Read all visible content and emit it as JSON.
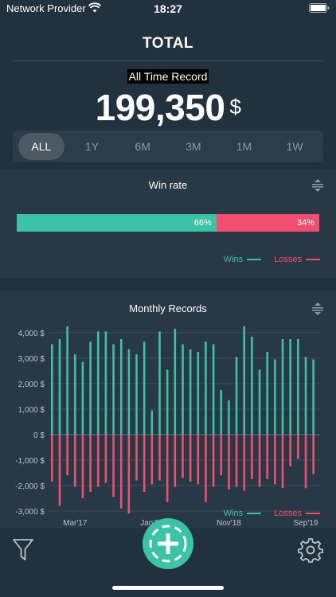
{
  "status": {
    "provider": "Network Provider",
    "time": "18:27"
  },
  "header": {
    "title": "TOTAL",
    "record_label": "All Time Record",
    "total": "199,350",
    "currency": "$"
  },
  "range_tabs": [
    "ALL",
    "1Y",
    "6M",
    "3M",
    "1M",
    "1W"
  ],
  "range_selected": "ALL",
  "winrate": {
    "title": "Win rate",
    "wins_pct": 66,
    "losses_pct": 34,
    "wins_label": "66%",
    "losses_label": "34%",
    "legend": {
      "wins": "Wins",
      "losses": "Losses"
    }
  },
  "monthly": {
    "title": "Monthly Records",
    "legend": {
      "wins": "Wins",
      "losses": "Losses"
    }
  },
  "colors": {
    "wins": "#3cc2a4",
    "losses": "#f14f6f",
    "background": "#22313e",
    "card": "#283845"
  },
  "icons": {
    "wifi": "wifi-icon",
    "battery": "battery-icon",
    "sort": "sort-icon",
    "filter": "filter-icon",
    "add": "plus-icon",
    "settings": "gear-icon"
  },
  "chart_data": {
    "type": "bar",
    "title": "Monthly Records",
    "ylim": [
      -3000,
      4000
    ],
    "yticks": [
      "4,000 $",
      "3,000 $",
      "2,000 $",
      "1,000 $",
      "0 $",
      "-1,000 $",
      "-2,000 $",
      "-3,000 $"
    ],
    "xticks": [
      "Mar'17",
      "Jan'18",
      "Nov'18",
      "Sep'19"
    ],
    "xtick_index": [
      3,
      13,
      23,
      33
    ],
    "grid": true,
    "legend_position": "bottom-right",
    "series": [
      {
        "name": "Wins",
        "values": [
          3550,
          3750,
          4250,
          3150,
          2850,
          3650,
          4050,
          4050,
          3550,
          3750,
          3350,
          3150,
          3650,
          950,
          4050,
          2550,
          4150,
          3550,
          3350,
          3250,
          3650,
          3550,
          1750,
          1350,
          3050,
          4250,
          3850,
          2550,
          3250,
          2950,
          3750,
          3750,
          3750,
          3050,
          2950
        ]
      },
      {
        "name": "Losses",
        "values": [
          -1850,
          -2800,
          -1600,
          -2050,
          -2500,
          -2250,
          -2050,
          -1900,
          -2450,
          -2900,
          -3100,
          -1800,
          -2250,
          -1950,
          -1800,
          -2650,
          -2050,
          -1700,
          -1850,
          -1950,
          -2650,
          -2050,
          -1600,
          -2150,
          -2050,
          -2200,
          -1750,
          -2050,
          -1750,
          -1950,
          -2100,
          -1250,
          -950,
          -2100,
          -1550
        ]
      }
    ]
  },
  "bottom": {}
}
